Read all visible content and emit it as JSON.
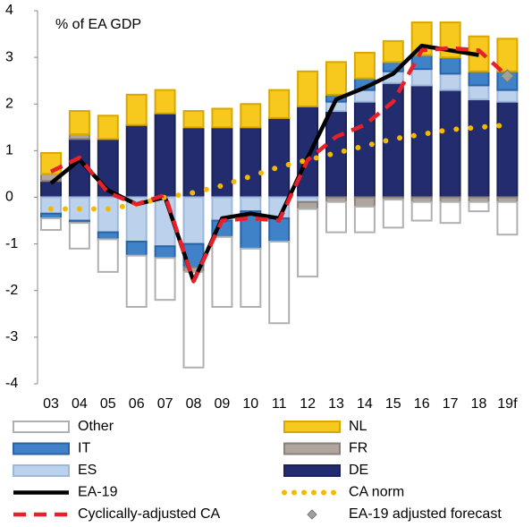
{
  "chart_data": {
    "type": "bar",
    "annotation": "% of EA GDP",
    "categories": [
      "03",
      "04",
      "05",
      "06",
      "07",
      "08",
      "09",
      "10",
      "11",
      "12",
      "13",
      "14",
      "15",
      "16",
      "17",
      "18",
      "19f"
    ],
    "ylim": [
      -4,
      4
    ],
    "yticks": [
      -4,
      -3,
      -2,
      -1,
      0,
      1,
      2,
      3,
      4
    ],
    "series": [
      {
        "name": "Other",
        "kind": "bar",
        "color": "#ffffff",
        "stroke": "#b0b0b0",
        "values": [
          -0.25,
          -0.55,
          -0.7,
          -1.1,
          -0.9,
          -2.05,
          -1.5,
          -1.25,
          -1.75,
          -1.45,
          -0.65,
          -0.55,
          -0.6,
          -0.4,
          -0.45,
          -0.2,
          -0.7
        ]
      },
      {
        "name": "NL",
        "kind": "bar",
        "color": "#f7c81e",
        "stroke": "#d9a800",
        "values": [
          0.45,
          0.5,
          0.5,
          0.65,
          0.5,
          0.35,
          0.4,
          0.5,
          0.6,
          0.75,
          0.7,
          0.55,
          0.45,
          0.7,
          0.75,
          0.75,
          0.7
        ]
      },
      {
        "name": "IT",
        "kind": "bar",
        "color": "#3f82c8",
        "stroke": "#2a63a6",
        "values": [
          -0.1,
          -0.05,
          -0.15,
          -0.3,
          -0.25,
          -0.5,
          -0.35,
          -0.8,
          -0.5,
          0,
          0.15,
          0.25,
          0.2,
          0.3,
          0.35,
          0.3,
          0.4
        ]
      },
      {
        "name": "FR",
        "kind": "bar",
        "color": "#b0a69f",
        "stroke": "#8a807a",
        "values": [
          0.15,
          0.1,
          0,
          0,
          0,
          -0.1,
          0,
          0,
          0,
          -0.15,
          -0.1,
          -0.2,
          -0.05,
          -0.1,
          -0.1,
          -0.1,
          -0.1
        ]
      },
      {
        "name": "ES",
        "kind": "bar",
        "color": "#bcd1ec",
        "stroke": "#9db8dc",
        "values": [
          -0.35,
          -0.5,
          -0.75,
          -0.95,
          -1.05,
          -1.0,
          -0.5,
          -0.3,
          -0.45,
          -0.1,
          0.2,
          0.25,
          0.25,
          0.35,
          0.35,
          0.3,
          0.25
        ]
      },
      {
        "name": "DE",
        "kind": "bar",
        "color": "#222c6e",
        "stroke": "#1a2258",
        "values": [
          0.35,
          1.25,
          1.25,
          1.55,
          1.8,
          1.5,
          1.5,
          1.5,
          1.7,
          1.95,
          1.85,
          2.05,
          2.45,
          2.4,
          2.3,
          2.1,
          2.05
        ]
      },
      {
        "name": "EA-19",
        "kind": "line",
        "color": "#000000",
        "values": [
          0.3,
          0.8,
          0.15,
          -0.15,
          0.0,
          -1.8,
          -0.45,
          -0.35,
          -0.45,
          0.85,
          2.1,
          2.35,
          2.65,
          3.25,
          3.15,
          3.05,
          null
        ]
      },
      {
        "name": "CA norm",
        "kind": "dots",
        "color": "#f5b800",
        "values": [
          -0.25,
          -0.25,
          -0.25,
          -0.15,
          0.0,
          0.1,
          0.25,
          0.45,
          0.65,
          0.8,
          0.95,
          1.1,
          1.25,
          1.35,
          1.45,
          1.5,
          1.55
        ]
      },
      {
        "name": "Cyclically-adjusted CA",
        "kind": "dashed",
        "color": "#e8202a",
        "values": [
          0.55,
          0.85,
          0.1,
          -0.15,
          0.05,
          -1.8,
          -0.5,
          -0.45,
          -0.5,
          0.8,
          1.3,
          1.55,
          2.05,
          3.15,
          3.2,
          3.15,
          2.6
        ]
      },
      {
        "name": "EA-19 adjusted forecast",
        "kind": "marker",
        "color": "#a0a0a0",
        "values": [
          null,
          null,
          null,
          null,
          null,
          null,
          null,
          null,
          null,
          null,
          null,
          null,
          null,
          null,
          null,
          null,
          2.6
        ]
      }
    ]
  }
}
